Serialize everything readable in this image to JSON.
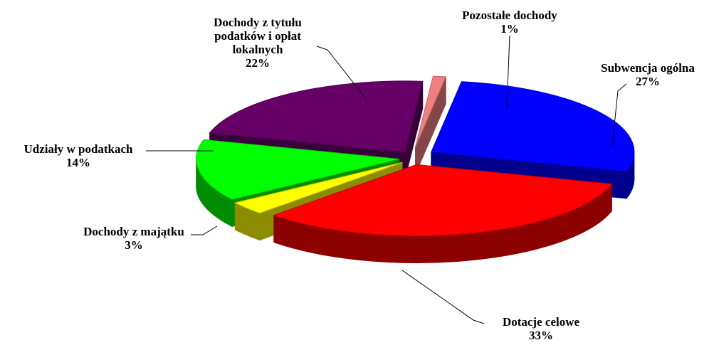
{
  "chart_data": {
    "type": "pie3d",
    "categories": [
      "Pozostałe dochody",
      "Subwencja ogólna",
      "Dotacje celowe",
      "Dochody z majątku",
      "Udziały w podatkach",
      "Dochody z tytułu podatków i opłat lokalnych"
    ],
    "values": [
      1,
      27,
      33,
      3,
      14,
      22
    ],
    "value_labels": [
      "1%",
      "27%",
      "33%",
      "3%",
      "14%",
      "22%"
    ],
    "colors": [
      "#f08080",
      "#0000ff",
      "#ff0000",
      "#ffff00",
      "#00ff00",
      "#660066"
    ]
  }
}
